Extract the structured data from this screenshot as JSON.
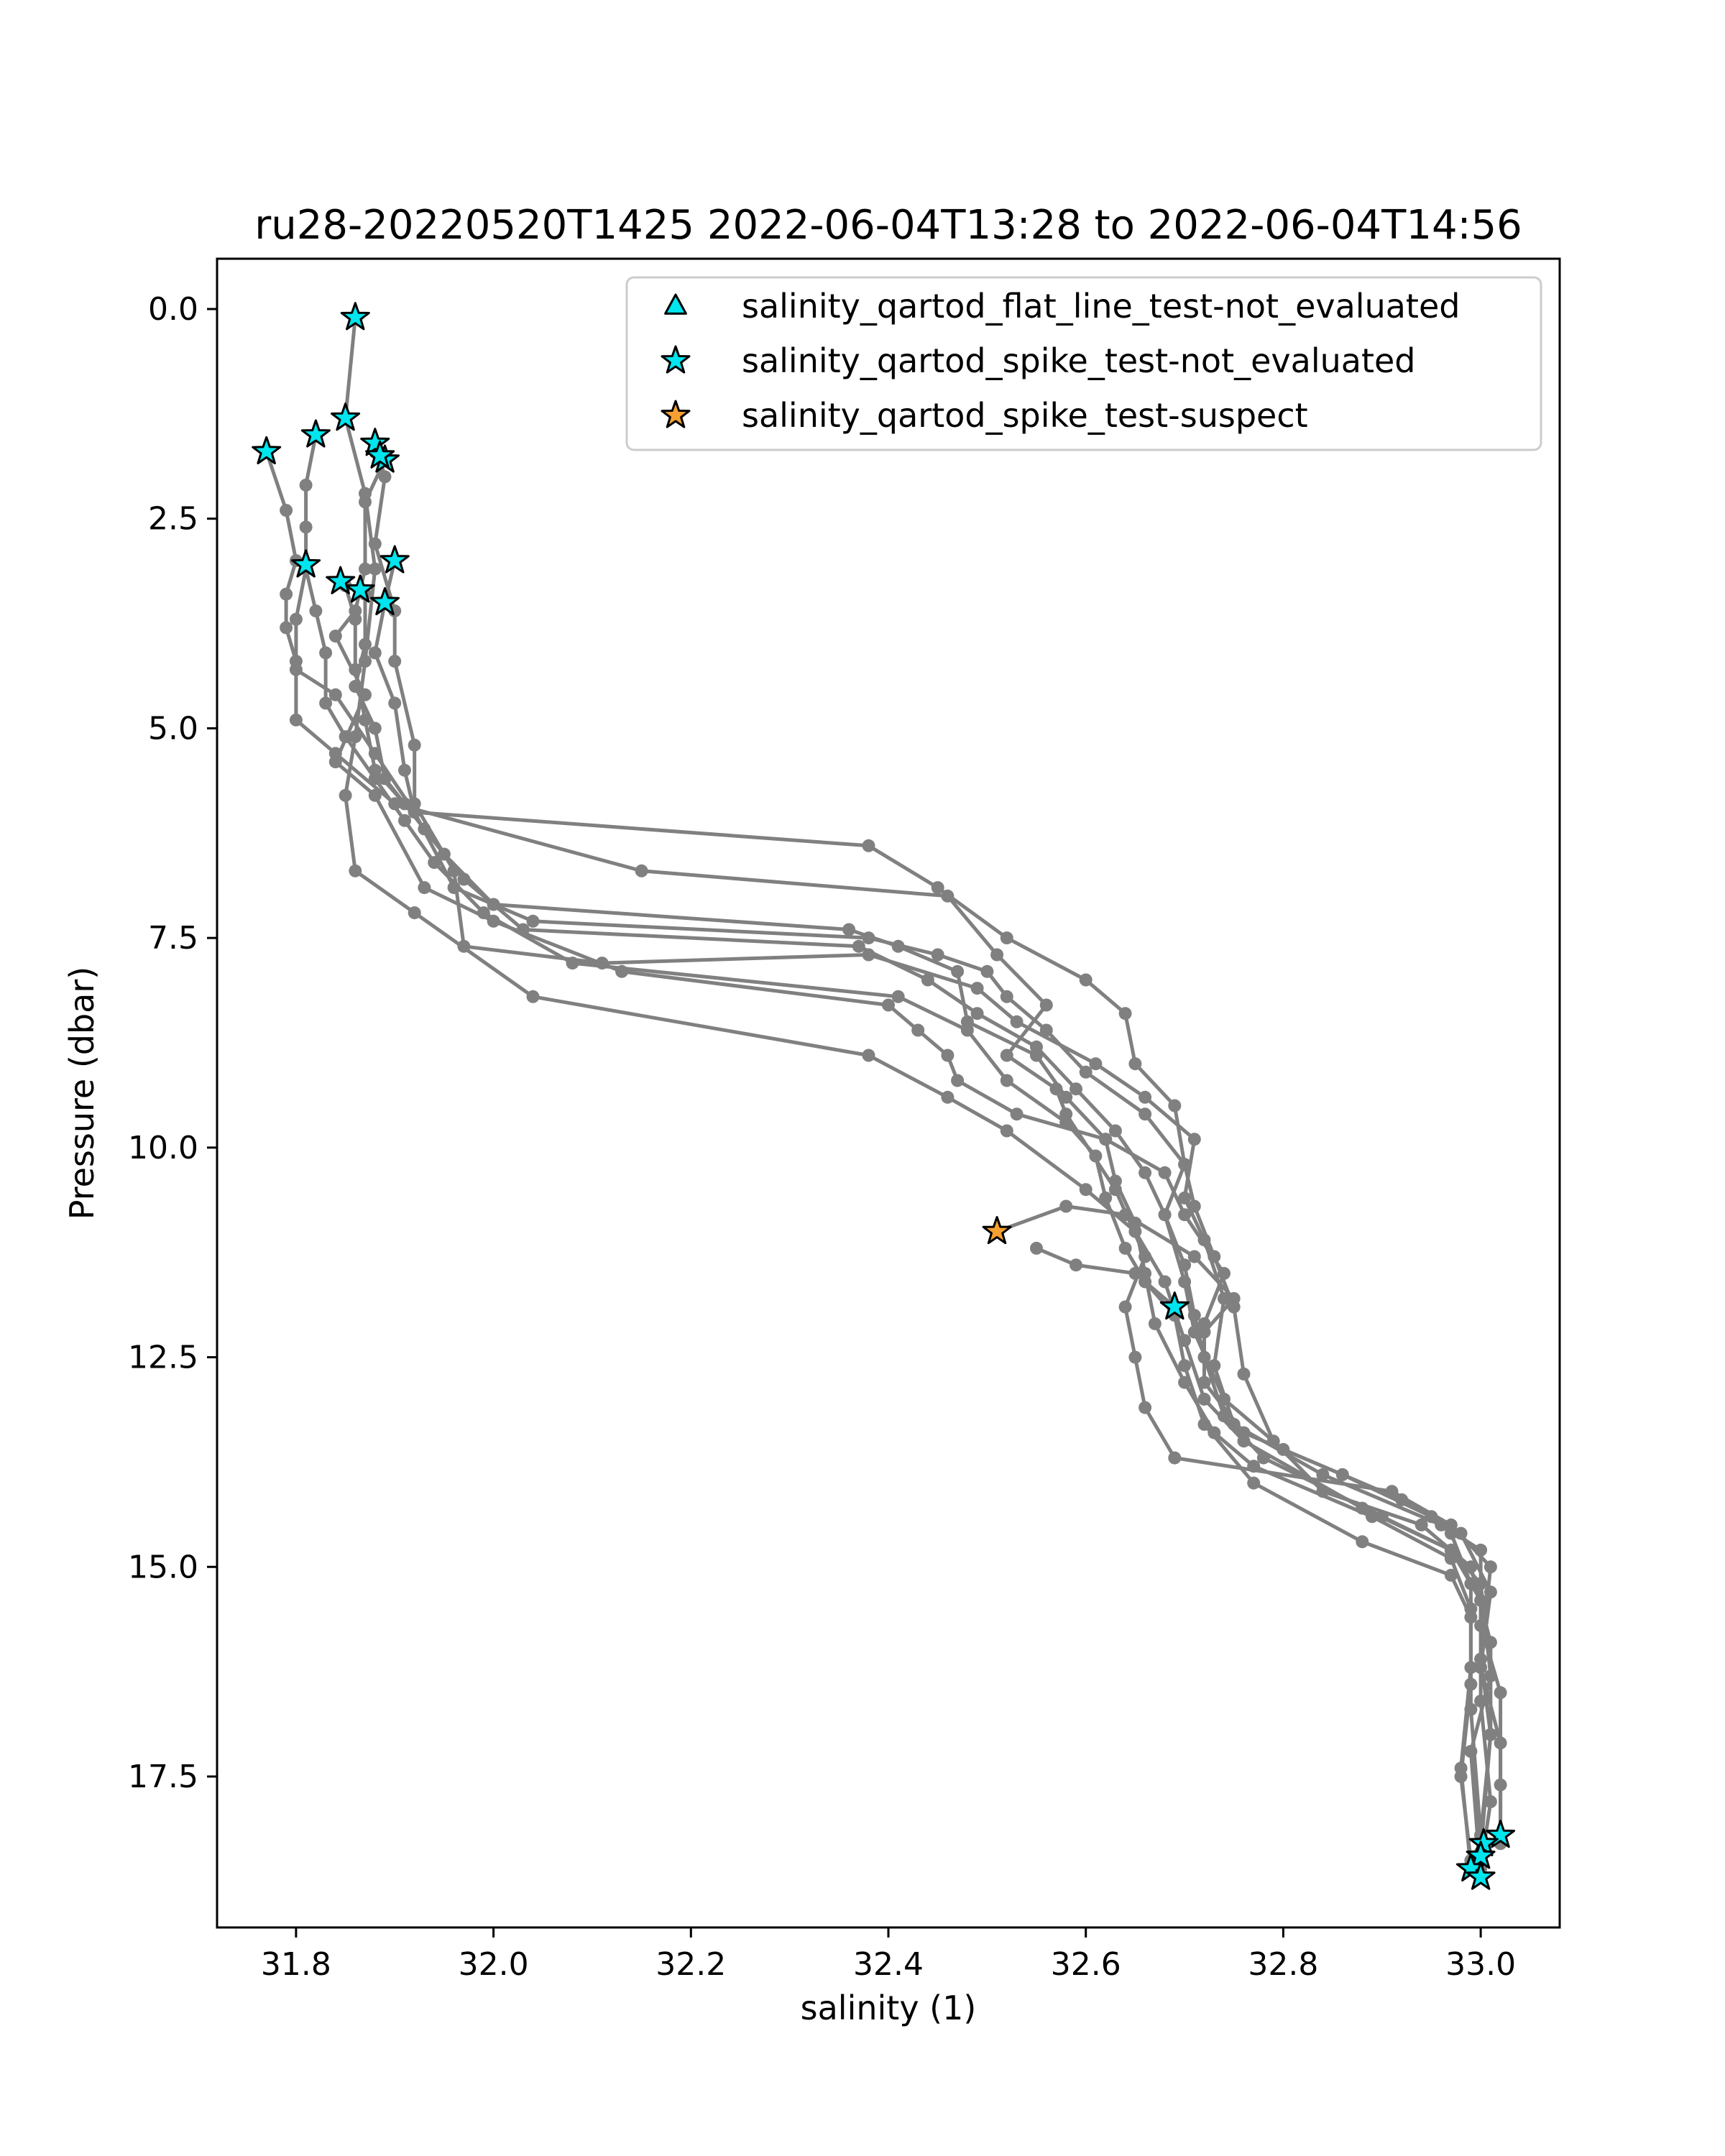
{
  "chart_data": {
    "type": "scatter",
    "title": "ru28-20220520T1425 2022-06-04T13:28 to 2022-06-04T14:56",
    "xlabel": "salinity (1)",
    "ylabel": "Pressure (dbar)",
    "xlim": [
      31.72,
      33.08
    ],
    "ylim": [
      19.3,
      -0.6
    ],
    "y_inverted": true,
    "grid": false,
    "legend_position": "top-right",
    "xticks": [
      {
        "value": 31.8,
        "label": "31.8"
      },
      {
        "value": 32.0,
        "label": "32.0"
      },
      {
        "value": 32.2,
        "label": "32.2"
      },
      {
        "value": 32.4,
        "label": "32.4"
      },
      {
        "value": 32.6,
        "label": "32.6"
      },
      {
        "value": 32.8,
        "label": "32.8"
      },
      {
        "value": 33.0,
        "label": "33.0"
      }
    ],
    "yticks": [
      {
        "value": 0.0,
        "label": "0.0"
      },
      {
        "value": 2.5,
        "label": "2.5"
      },
      {
        "value": 5.0,
        "label": "5.0"
      },
      {
        "value": 7.5,
        "label": "7.5"
      },
      {
        "value": 10.0,
        "label": "10.0"
      },
      {
        "value": 12.5,
        "label": "12.5"
      },
      {
        "value": 15.0,
        "label": "15.0"
      },
      {
        "value": 17.5,
        "label": "17.5"
      }
    ],
    "profile_style": {
      "color": "#808080"
    },
    "profiles": [
      [
        [
          31.86,
          0.1
        ],
        [
          31.85,
          1.3
        ],
        [
          31.87,
          2.2
        ],
        [
          31.88,
          3.1
        ],
        [
          31.87,
          4.2
        ],
        [
          31.86,
          5.1
        ],
        [
          31.85,
          5.8
        ],
        [
          31.86,
          6.7
        ],
        [
          31.92,
          7.2
        ],
        [
          32.04,
          8.2
        ],
        [
          32.38,
          8.9
        ],
        [
          32.46,
          9.4
        ],
        [
          32.52,
          9.8
        ],
        [
          32.6,
          10.5
        ],
        [
          32.65,
          11.0
        ],
        [
          32.68,
          11.6
        ],
        [
          32.7,
          12.3
        ],
        [
          32.72,
          13.0
        ],
        [
          32.76,
          13.5
        ],
        [
          32.88,
          14.3
        ],
        [
          32.97,
          14.8
        ],
        [
          33.0,
          15.2
        ],
        [
          33.01,
          16.3
        ],
        [
          32.99,
          17.2
        ],
        [
          33.0,
          18.7
        ]
      ],
      [
        [
          31.82,
          1.5
        ],
        [
          31.81,
          2.1
        ],
        [
          31.81,
          2.6
        ],
        [
          31.81,
          3.1
        ],
        [
          31.8,
          3.7
        ],
        [
          31.8,
          4.3
        ],
        [
          31.84,
          4.6
        ],
        [
          31.88,
          5.3
        ],
        [
          31.92,
          6.0
        ],
        [
          32.38,
          6.4
        ],
        [
          32.45,
          6.9
        ],
        [
          32.52,
          7.5
        ],
        [
          32.6,
          8.0
        ],
        [
          32.64,
          8.4
        ],
        [
          32.65,
          9.0
        ],
        [
          32.69,
          9.5
        ],
        [
          32.7,
          10.2
        ],
        [
          32.68,
          10.8
        ],
        [
          32.7,
          11.6
        ],
        [
          32.71,
          12.2
        ],
        [
          32.74,
          13.0
        ],
        [
          32.8,
          13.6
        ],
        [
          32.92,
          14.2
        ],
        [
          32.98,
          14.6
        ],
        [
          33.01,
          15.3
        ],
        [
          33.0,
          16.2
        ],
        [
          33.02,
          17.1
        ],
        [
          33.02,
          18.2
        ]
      ],
      [
        [
          31.77,
          1.7
        ],
        [
          31.79,
          2.4
        ],
        [
          31.8,
          3.0
        ],
        [
          31.79,
          3.4
        ],
        [
          31.79,
          3.8
        ],
        [
          31.8,
          4.2
        ],
        [
          31.8,
          4.9
        ],
        [
          31.84,
          5.3
        ],
        [
          31.9,
          5.9
        ],
        [
          32.15,
          6.7
        ],
        [
          32.46,
          7.0
        ],
        [
          32.51,
          7.7
        ],
        [
          32.56,
          8.3
        ],
        [
          32.52,
          8.9
        ],
        [
          32.57,
          9.3
        ],
        [
          32.58,
          9.6
        ],
        [
          32.63,
          10.5
        ],
        [
          32.66,
          11.3
        ],
        [
          32.64,
          11.9
        ],
        [
          32.65,
          12.5
        ],
        [
          32.66,
          13.1
        ],
        [
          32.69,
          13.7
        ],
        [
          32.91,
          14.1
        ],
        [
          32.97,
          14.5
        ],
        [
          33.01,
          15.0
        ],
        [
          33.0,
          16.1
        ],
        [
          33.01,
          17.0
        ],
        [
          33.0,
          18.4
        ]
      ],
      [
        [
          31.89,
          1.8
        ],
        [
          31.87,
          2.3
        ],
        [
          31.87,
          3.1
        ],
        [
          31.86,
          3.6
        ],
        [
          31.84,
          3.9
        ],
        [
          31.87,
          4.6
        ],
        [
          31.84,
          5.4
        ],
        [
          31.88,
          5.8
        ],
        [
          31.93,
          6.9
        ],
        [
          32.0,
          7.3
        ],
        [
          32.13,
          7.9
        ],
        [
          32.4,
          8.3
        ],
        [
          32.43,
          8.6
        ],
        [
          32.46,
          8.9
        ],
        [
          32.47,
          9.2
        ],
        [
          32.53,
          9.6
        ],
        [
          32.62,
          9.9
        ],
        [
          32.68,
          10.3
        ],
        [
          32.7,
          10.8
        ],
        [
          32.74,
          11.5
        ],
        [
          32.72,
          12.1
        ],
        [
          32.72,
          12.8
        ],
        [
          32.76,
          13.4
        ],
        [
          32.86,
          13.9
        ],
        [
          32.95,
          14.4
        ],
        [
          32.97,
          14.6
        ],
        [
          32.99,
          15.2
        ],
        [
          32.99,
          16.2
        ],
        [
          32.98,
          17.4
        ],
        [
          32.99,
          18.6
        ]
      ],
      [
        [
          31.88,
          1.6
        ],
        [
          31.89,
          2.0
        ],
        [
          31.88,
          2.8
        ],
        [
          31.9,
          3.6
        ],
        [
          31.9,
          4.2
        ],
        [
          31.92,
          5.2
        ],
        [
          31.92,
          5.9
        ],
        [
          31.96,
          6.7
        ],
        [
          31.97,
          7.6
        ],
        [
          32.11,
          7.8
        ],
        [
          32.38,
          7.7
        ],
        [
          32.49,
          8.1
        ],
        [
          32.53,
          8.5
        ],
        [
          32.61,
          9.0
        ],
        [
          32.66,
          9.4
        ],
        [
          32.71,
          9.9
        ],
        [
          32.7,
          10.6
        ],
        [
          32.72,
          11.1
        ],
        [
          32.74,
          11.8
        ],
        [
          32.73,
          12.6
        ],
        [
          32.75,
          13.3
        ],
        [
          32.84,
          13.9
        ],
        [
          32.96,
          14.5
        ],
        [
          33.0,
          14.8
        ],
        [
          33.0,
          15.7
        ],
        [
          33.02,
          16.5
        ],
        [
          33.02,
          17.6
        ],
        [
          33.02,
          18.3
        ]
      ],
      [
        [
          31.9,
          3.0
        ],
        [
          31.89,
          3.5
        ],
        [
          31.88,
          4.1
        ],
        [
          31.9,
          4.7
        ],
        [
          31.91,
          5.5
        ],
        [
          31.92,
          6.0
        ],
        [
          31.96,
          6.9
        ],
        [
          32.04,
          7.3
        ],
        [
          32.38,
          7.5
        ],
        [
          32.45,
          7.7
        ],
        [
          32.5,
          7.9
        ],
        [
          32.52,
          8.2
        ],
        [
          32.56,
          8.6
        ],
        [
          32.6,
          9.1
        ],
        [
          32.66,
          9.6
        ],
        [
          32.7,
          10.2
        ],
        [
          32.71,
          10.7
        ],
        [
          32.73,
          11.3
        ],
        [
          32.75,
          11.9
        ],
        [
          32.76,
          12.7
        ],
        [
          32.79,
          13.5
        ],
        [
          32.84,
          14.1
        ],
        [
          32.94,
          14.5
        ],
        [
          32.99,
          15.0
        ],
        [
          33.01,
          15.9
        ],
        [
          33.01,
          17.0
        ],
        [
          33.0,
          18.2
        ]
      ],
      [
        [
          31.81,
          3.1
        ],
        [
          31.82,
          3.6
        ],
        [
          31.83,
          4.1
        ],
        [
          31.83,
          4.7
        ],
        [
          31.85,
          5.1
        ],
        [
          31.88,
          5.6
        ],
        [
          31.91,
          6.1
        ],
        [
          31.94,
          6.6
        ],
        [
          31.99,
          7.2
        ],
        [
          32.08,
          7.8
        ],
        [
          32.41,
          8.2
        ],
        [
          32.48,
          8.6
        ],
        [
          32.52,
          9.2
        ],
        [
          32.58,
          9.7
        ],
        [
          32.61,
          10.1
        ],
        [
          32.62,
          10.6
        ],
        [
          32.64,
          11.2
        ],
        [
          32.66,
          11.6
        ],
        [
          32.69,
          12.0
        ],
        [
          32.7,
          12.6
        ],
        [
          32.72,
          13.3
        ],
        [
          32.77,
          14.0
        ],
        [
          32.88,
          14.7
        ],
        [
          32.97,
          15.1
        ],
        [
          32.99,
          15.6
        ],
        [
          32.99,
          16.7
        ],
        [
          33.0,
          18.2
        ]
      ],
      [
        [
          31.85,
          3.3
        ],
        [
          31.86,
          3.7
        ],
        [
          31.86,
          4.3
        ],
        [
          31.87,
          4.9
        ],
        [
          31.88,
          5.5
        ],
        [
          31.91,
          5.9
        ],
        [
          31.95,
          6.5
        ],
        [
          32.0,
          7.1
        ],
        [
          32.36,
          7.4
        ],
        [
          32.41,
          7.6
        ],
        [
          32.47,
          7.9
        ],
        [
          32.48,
          8.5
        ],
        [
          32.55,
          8.9
        ],
        [
          32.58,
          9.4
        ],
        [
          32.62,
          9.9
        ],
        [
          32.63,
          10.4
        ],
        [
          32.65,
          10.9
        ],
        [
          32.66,
          11.5
        ],
        [
          32.67,
          12.1
        ],
        [
          32.7,
          12.8
        ],
        [
          32.73,
          13.4
        ],
        [
          32.77,
          13.8
        ],
        [
          32.89,
          14.4
        ],
        [
          32.97,
          14.9
        ],
        [
          32.99,
          15.5
        ],
        [
          32.99,
          16.4
        ],
        [
          32.98,
          17.5
        ],
        [
          32.99,
          18.5
        ]
      ],
      [
        [
          31.87,
          3.4
        ],
        [
          31.87,
          4.0
        ],
        [
          31.86,
          4.5
        ],
        [
          31.88,
          5.0
        ],
        [
          31.89,
          5.6
        ],
        [
          31.93,
          6.2
        ],
        [
          31.97,
          6.8
        ],
        [
          32.03,
          7.4
        ],
        [
          32.37,
          7.6
        ],
        [
          32.44,
          8.0
        ],
        [
          32.49,
          8.4
        ],
        [
          32.55,
          8.8
        ],
        [
          32.59,
          9.3
        ],
        [
          32.63,
          9.8
        ],
        [
          32.66,
          10.3
        ],
        [
          32.68,
          10.8
        ],
        [
          32.7,
          11.4
        ],
        [
          32.71,
          12.0
        ],
        [
          32.72,
          12.5
        ],
        [
          32.74,
          13.2
        ],
        [
          32.78,
          13.7
        ],
        [
          32.9,
          14.4
        ],
        [
          32.97,
          14.8
        ],
        [
          33.0,
          15.4
        ],
        [
          33.0,
          16.6
        ],
        [
          33.01,
          17.8
        ],
        [
          33.0,
          18.6
        ]
      ],
      [
        [
          32.51,
          11.0
        ],
        [
          32.58,
          10.7
        ],
        [
          32.64,
          10.8
        ],
        [
          32.71,
          11.3
        ],
        [
          32.75,
          11.8
        ],
        [
          32.72,
          12.2
        ]
      ],
      [
        [
          32.69,
          11.9
        ],
        [
          32.65,
          11.5
        ],
        [
          32.59,
          11.4
        ],
        [
          32.55,
          11.2
        ]
      ]
    ],
    "series": [
      {
        "name": "salinity_qartod_flat_line_test-not_evaluated",
        "marker": "triangle",
        "color": "#00e5ee",
        "points": []
      },
      {
        "name": "salinity_qartod_spike_test-not_evaluated",
        "marker": "star",
        "color": "#00e5ee",
        "points": [
          [
            31.86,
            0.1
          ],
          [
            31.85,
            1.3
          ],
          [
            31.82,
            1.5
          ],
          [
            31.77,
            1.7
          ],
          [
            31.88,
            1.6
          ],
          [
            31.89,
            1.8
          ],
          [
            31.885,
            1.75
          ],
          [
            31.9,
            3.0
          ],
          [
            31.81,
            3.05
          ],
          [
            31.845,
            3.25
          ],
          [
            31.865,
            3.35
          ],
          [
            31.89,
            3.5
          ],
          [
            32.69,
            11.9
          ],
          [
            33.02,
            18.2
          ],
          [
            33.003,
            18.3
          ],
          [
            33.0,
            18.45
          ],
          [
            32.99,
            18.6
          ],
          [
            33.0,
            18.7
          ]
        ]
      },
      {
        "name": "salinity_qartod_spike_test-suspect",
        "marker": "star",
        "color": "#f5a030",
        "points": [
          [
            32.51,
            11.0
          ]
        ]
      }
    ]
  }
}
